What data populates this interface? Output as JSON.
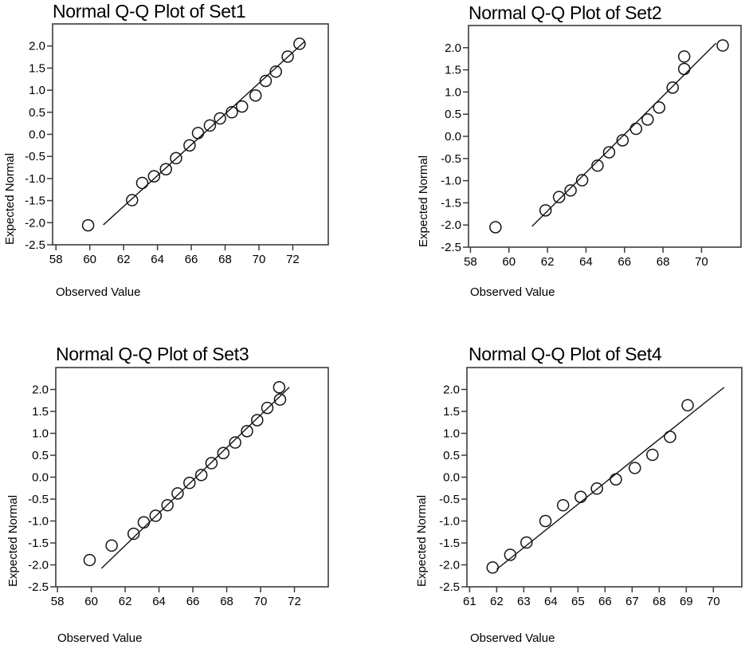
{
  "figure": {
    "background": "#ffffff",
    "text_color": "#000000",
    "axis_color": "#3c3c3c",
    "marker_color": "#141414"
  },
  "chart_data": [
    {
      "type": "scatter",
      "title": "Normal Q-Q Plot of Set1",
      "xlabel": "Observed Value",
      "ylabel": "Expected Normal",
      "xlim": [
        57.8,
        74.1
      ],
      "ylim": [
        -2.5,
        2.5
      ],
      "grid": false,
      "legend": null,
      "x_ticks": {
        "values": [
          58,
          60,
          62,
          64,
          66,
          68,
          70,
          72
        ],
        "labels": [
          "58",
          "60",
          "62",
          "64",
          "66",
          "68",
          "70",
          "72"
        ]
      },
      "y_ticks": {
        "values": [
          2.0,
          1.5,
          1.0,
          0.5,
          0.0,
          -0.5,
          -1.0,
          -1.5,
          -2.0,
          -2.5
        ],
        "labels": [
          "2.0",
          "1.5",
          "1.0",
          "0.5",
          "0.0",
          "-0.5",
          "-1.0",
          "-1.5",
          "-2.0",
          "-2.5"
        ]
      },
      "points": [
        [
          59.9,
          -2.06
        ],
        [
          62.5,
          -1.49
        ],
        [
          63.1,
          -1.1
        ],
        [
          63.8,
          -0.95
        ],
        [
          64.5,
          -0.79
        ],
        [
          65.1,
          -0.54
        ],
        [
          65.9,
          -0.25
        ],
        [
          66.4,
          0.03
        ],
        [
          67.1,
          0.2
        ],
        [
          67.7,
          0.36
        ],
        [
          68.4,
          0.5
        ],
        [
          69.0,
          0.63
        ],
        [
          69.8,
          0.88
        ],
        [
          70.4,
          1.21
        ],
        [
          71.0,
          1.42
        ],
        [
          71.7,
          1.76
        ],
        [
          72.4,
          2.05
        ]
      ],
      "fit_line": [
        [
          60.8,
          -2.05
        ],
        [
          72.7,
          2.1
        ]
      ]
    },
    {
      "type": "scatter",
      "title": "Normal Q-Q Plot of Set2",
      "xlabel": "Observed Value",
      "ylabel": "Expected Normal",
      "xlim": [
        57.9,
        72.05
      ],
      "ylim": [
        -2.5,
        2.5
      ],
      "grid": false,
      "legend": null,
      "x_ticks": {
        "values": [
          58,
          60,
          62,
          64,
          66,
          68,
          70
        ],
        "labels": [
          "58",
          "60",
          "62",
          "64",
          "66",
          "68",
          "70"
        ]
      },
      "y_ticks": {
        "values": [
          2.0,
          1.5,
          1.0,
          0.5,
          0.0,
          -0.5,
          -1.0,
          -1.5,
          -2.0,
          -2.5
        ],
        "labels": [
          "2.0",
          "1.5",
          "1.0",
          "0.5",
          "0.0",
          "-0.5",
          "-1.0",
          "-1.5",
          "-2.0",
          "-2.5"
        ]
      },
      "points": [
        [
          59.3,
          -2.05
        ],
        [
          61.9,
          -1.67
        ],
        [
          62.6,
          -1.37
        ],
        [
          63.2,
          -1.22
        ],
        [
          63.8,
          -0.99
        ],
        [
          64.6,
          -0.66
        ],
        [
          65.2,
          -0.36
        ],
        [
          65.9,
          -0.09
        ],
        [
          66.6,
          0.17
        ],
        [
          67.2,
          0.38
        ],
        [
          67.8,
          0.65
        ],
        [
          68.5,
          1.1
        ],
        [
          69.1,
          1.52
        ],
        [
          69.1,
          1.8
        ],
        [
          71.1,
          2.05
        ]
      ],
      "fit_line": [
        [
          61.2,
          -2.03
        ],
        [
          70.75,
          2.1
        ]
      ]
    },
    {
      "type": "scatter",
      "title": "Normal Q-Q Plot of Set3",
      "xlabel": "Observed Value",
      "ylabel": "Expected Normal",
      "xlim": [
        57.9,
        74.0
      ],
      "ylim": [
        -2.5,
        2.5
      ],
      "grid": false,
      "legend": null,
      "x_ticks": {
        "values": [
          58,
          60,
          62,
          64,
          66,
          68,
          70,
          72
        ],
        "labels": [
          "58",
          "60",
          "62",
          "64",
          "66",
          "68",
          "70",
          "72"
        ]
      },
      "y_ticks": {
        "values": [
          2.0,
          1.5,
          1.0,
          0.5,
          0.0,
          -0.5,
          -1.0,
          -1.5,
          -2.0,
          -2.5
        ],
        "labels": [
          "2.0",
          "1.5",
          "1.0",
          "0.5",
          "0.0",
          "-0.5",
          "-1.0",
          "-1.5",
          "-2.0",
          "-2.5"
        ]
      },
      "points": [
        [
          59.9,
          -1.89
        ],
        [
          61.2,
          -1.56
        ],
        [
          62.5,
          -1.29
        ],
        [
          63.1,
          -1.03
        ],
        [
          63.8,
          -0.88
        ],
        [
          64.5,
          -0.64
        ],
        [
          65.1,
          -0.37
        ],
        [
          65.8,
          -0.13
        ],
        [
          66.5,
          0.05
        ],
        [
          67.1,
          0.32
        ],
        [
          67.8,
          0.55
        ],
        [
          68.5,
          0.79
        ],
        [
          69.2,
          1.05
        ],
        [
          69.8,
          1.3
        ],
        [
          70.4,
          1.58
        ],
        [
          71.15,
          1.77
        ],
        [
          71.1,
          2.05
        ]
      ],
      "fit_line": [
        [
          60.6,
          -2.08
        ],
        [
          71.7,
          2.05
        ]
      ]
    },
    {
      "type": "scatter",
      "title": "Normal Q-Q Plot of Set4",
      "xlabel": "Observed Value",
      "ylabel": "Expected Normal",
      "xlim": [
        60.9,
        71.05
      ],
      "ylim": [
        -2.5,
        2.5
      ],
      "grid": false,
      "legend": null,
      "x_ticks": {
        "values": [
          61,
          62,
          63,
          64,
          65,
          66,
          67,
          68,
          69,
          70
        ],
        "labels": [
          "61",
          "62",
          "63",
          "64",
          "65",
          "66",
          "67",
          "68",
          "69",
          "70"
        ]
      },
      "y_ticks": {
        "values": [
          2.0,
          1.5,
          1.0,
          0.5,
          0.0,
          -0.5,
          -1.0,
          -1.5,
          -2.0,
          -2.5
        ],
        "labels": [
          "2.0",
          "1.5",
          "1.0",
          "0.5",
          "0.0",
          "-0.5",
          "-1.0",
          "-1.5",
          "-2.0",
          "-2.5"
        ]
      },
      "points": [
        [
          61.85,
          -2.06
        ],
        [
          62.5,
          -1.77
        ],
        [
          63.1,
          -1.49
        ],
        [
          63.8,
          -1.0
        ],
        [
          64.45,
          -0.64
        ],
        [
          65.1,
          -0.45
        ],
        [
          65.7,
          -0.26
        ],
        [
          66.4,
          -0.05
        ],
        [
          67.1,
          0.21
        ],
        [
          67.75,
          0.51
        ],
        [
          68.4,
          0.92
        ],
        [
          69.05,
          1.64
        ]
      ],
      "fit_line": [
        [
          62.0,
          -2.1
        ],
        [
          70.4,
          2.05
        ]
      ]
    }
  ]
}
